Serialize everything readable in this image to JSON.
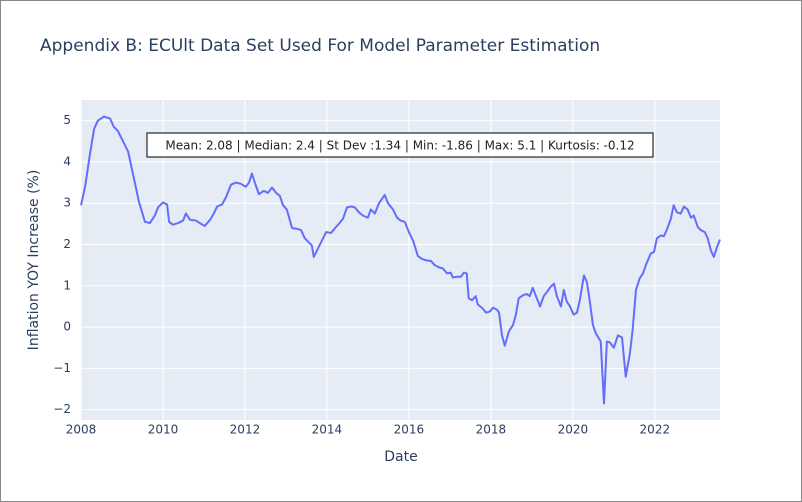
{
  "chart_data": {
    "type": "line",
    "title": "Appendix B: ECUlt Data Set Used For Model Parameter Estimation",
    "xlabel": "Date",
    "ylabel": "Inflation YOY Increase (%)",
    "annotation": "Mean: 2.08 | Median: 2.4 | St Dev :1.34 | Min: -1.86 | Max: 5.1 | Kurtosis: -0.12",
    "color": "#636efa",
    "grid": true,
    "xlim": [
      2008,
      2023.59
    ],
    "ylim": [
      -2.25,
      5.5
    ],
    "xticks": [
      2008,
      2010,
      2012,
      2014,
      2016,
      2018,
      2020,
      2022
    ],
    "yticks": [
      {
        "value": -2,
        "label": "−2"
      },
      {
        "value": -1,
        "label": "−1"
      },
      0,
      1,
      2,
      3,
      4,
      5
    ],
    "x": [
      2008.0,
      2008.1,
      2008.22,
      2008.32,
      2008.41,
      2008.56,
      2008.71,
      2008.8,
      2008.9,
      2009.0,
      2009.15,
      2009.27,
      2009.41,
      2009.56,
      2009.68,
      2009.8,
      2009.88,
      2010.0,
      2010.1,
      2010.15,
      2010.24,
      2010.37,
      2010.49,
      2010.56,
      2010.66,
      2010.8,
      2010.93,
      2011.02,
      2011.15,
      2011.24,
      2011.32,
      2011.44,
      2011.54,
      2011.66,
      2011.78,
      2011.9,
      2012.02,
      2012.1,
      2012.17,
      2012.24,
      2012.34,
      2012.46,
      2012.56,
      2012.66,
      2012.76,
      2012.85,
      2012.93,
      2013.02,
      2013.15,
      2013.27,
      2013.37,
      2013.46,
      2013.56,
      2013.63,
      2013.68,
      2013.78,
      2013.88,
      2013.98,
      2014.1,
      2014.2,
      2014.29,
      2014.39,
      2014.49,
      2014.59,
      2014.68,
      2014.78,
      2014.88,
      2015.0,
      2015.07,
      2015.17,
      2015.27,
      2015.41,
      2015.49,
      2015.61,
      2015.71,
      2015.8,
      2015.9,
      2016.0,
      2016.1,
      2016.22,
      2016.32,
      2016.41,
      2016.54,
      2016.63,
      2016.73,
      2016.83,
      2016.93,
      2017.02,
      2017.07,
      2017.17,
      2017.27,
      2017.34,
      2017.41,
      2017.46,
      2017.54,
      2017.63,
      2017.68,
      2017.8,
      2017.88,
      2017.98,
      2018.05,
      2018.15,
      2018.2,
      2018.27,
      2018.34,
      2018.44,
      2018.54,
      2018.61,
      2018.68,
      2018.8,
      2018.88,
      2018.95,
      2019.02,
      2019.12,
      2019.2,
      2019.29,
      2019.39,
      2019.46,
      2019.54,
      2019.61,
      2019.71,
      2019.78,
      2019.85,
      2019.93,
      2020.02,
      2020.1,
      2020.17,
      2020.27,
      2020.34,
      2020.41,
      2020.49,
      2020.56,
      2020.68,
      2020.76,
      2020.83,
      2020.9,
      2021.0,
      2021.1,
      2021.2,
      2021.29,
      2021.39,
      2021.46,
      2021.54,
      2021.63,
      2021.71,
      2021.8,
      2021.9,
      2021.98,
      2022.05,
      2022.15,
      2022.22,
      2022.29,
      2022.39,
      2022.46,
      2022.54,
      2022.63,
      2022.71,
      2022.8,
      2022.88,
      2022.95,
      2023.05,
      2023.12,
      2023.22,
      2023.29,
      2023.37,
      2023.44,
      2023.51,
      2023.59
    ],
    "values": [
      2.95,
      3.4,
      4.2,
      4.8,
      5.0,
      5.1,
      5.05,
      4.85,
      4.75,
      4.55,
      4.25,
      3.7,
      3.05,
      2.55,
      2.52,
      2.7,
      2.9,
      3.02,
      2.97,
      2.55,
      2.48,
      2.52,
      2.58,
      2.75,
      2.6,
      2.58,
      2.5,
      2.45,
      2.6,
      2.75,
      2.92,
      2.97,
      3.15,
      3.45,
      3.5,
      3.47,
      3.4,
      3.5,
      3.72,
      3.5,
      3.22,
      3.3,
      3.25,
      3.38,
      3.25,
      3.18,
      2.95,
      2.85,
      2.4,
      2.38,
      2.35,
      2.15,
      2.05,
      1.98,
      1.7,
      1.9,
      2.1,
      2.3,
      2.28,
      2.4,
      2.5,
      2.62,
      2.9,
      2.92,
      2.9,
      2.78,
      2.7,
      2.65,
      2.85,
      2.75,
      3.0,
      3.2,
      3.0,
      2.85,
      2.65,
      2.58,
      2.55,
      2.3,
      2.1,
      1.72,
      1.65,
      1.62,
      1.6,
      1.5,
      1.45,
      1.42,
      1.3,
      1.32,
      1.2,
      1.22,
      1.22,
      1.32,
      1.3,
      0.7,
      0.65,
      0.75,
      0.55,
      0.45,
      0.35,
      0.38,
      0.47,
      0.42,
      0.35,
      -0.2,
      -0.45,
      -0.1,
      0.05,
      0.3,
      0.7,
      0.78,
      0.8,
      0.75,
      0.95,
      0.7,
      0.5,
      0.75,
      0.88,
      0.98,
      1.05,
      0.75,
      0.5,
      0.9,
      0.62,
      0.5,
      0.3,
      0.35,
      0.65,
      1.25,
      1.1,
      0.65,
      0.05,
      -0.15,
      -0.35,
      -1.85,
      -0.35,
      -0.37,
      -0.5,
      -0.2,
      -0.25,
      -1.2,
      -0.65,
      -0.05,
      0.9,
      1.18,
      1.3,
      1.55,
      1.78,
      1.82,
      2.15,
      2.22,
      2.2,
      2.35,
      2.62,
      2.95,
      2.78,
      2.75,
      2.92,
      2.85,
      2.65,
      2.7,
      2.42,
      2.35,
      2.3,
      2.15,
      1.85,
      1.7,
      1.92,
      2.12
    ]
  }
}
